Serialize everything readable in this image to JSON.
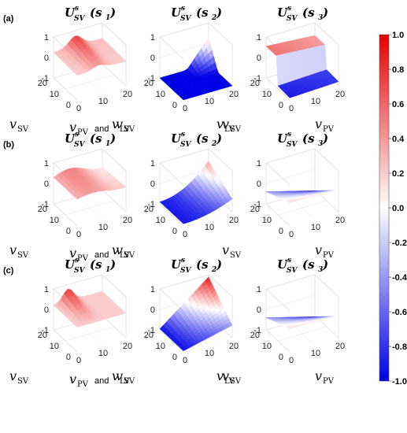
{
  "chart_data": {
    "type": "surface3d",
    "row_labels": [
      "(a)",
      "(b)",
      "(c)"
    ],
    "titles": [
      {
        "base": "U",
        "sup": "s",
        "sub": "SV",
        "arg": "(s",
        "argsub": "1",
        "close": ")"
      },
      {
        "base": "U",
        "sup": "s",
        "sub": "SV",
        "arg": "(s",
        "argsub": "2",
        "close": ")"
      },
      {
        "base": "U",
        "sup": "s",
        "sub": "SV",
        "arg": "(s",
        "argsub": "3",
        "close": ")"
      }
    ],
    "z_ticks": [
      "1",
      "0",
      "-1"
    ],
    "sv_ticks": [
      "20",
      "10",
      "0"
    ],
    "x_ticks": [
      "0",
      "10",
      "20"
    ],
    "axis_labels": {
      "sv": {
        "main": "v",
        "sub": "SV"
      },
      "pv": {
        "main": "v",
        "sub": "PV"
      },
      "lv": {
        "main": "v",
        "sub": "LV"
      },
      "and": "and"
    },
    "colorbar": {
      "ticks": [
        "1.0",
        "0.8",
        "0.6",
        "0.4",
        "0.2",
        "0.0",
        "-0.2",
        "-0.4",
        "-0.6",
        "-0.8",
        "-1.0"
      ],
      "min": -1.0,
      "max": 1.0,
      "colors": {
        "low": "#0000e6",
        "mid": "#ffffff",
        "high": "#e60000"
      }
    },
    "panels": [
      {
        "row": 0,
        "col": 0,
        "kind": "ridge",
        "level": 0.55,
        "range": [
          0.15,
          0.7
        ]
      },
      {
        "row": 0,
        "col": 1,
        "kind": "flat_rise",
        "level": -1.0,
        "range": [
          -1.0,
          0.3
        ]
      },
      {
        "row": 0,
        "col": 2,
        "kind": "step",
        "level": 0.5,
        "range": [
          -0.95,
          0.6
        ]
      },
      {
        "row": 1,
        "col": 0,
        "kind": "wave",
        "level": 0.45,
        "range": [
          0.15,
          0.55
        ]
      },
      {
        "row": 1,
        "col": 1,
        "kind": "slope",
        "level": -0.6,
        "range": [
          -0.9,
          0.4
        ]
      },
      {
        "row": 1,
        "col": 2,
        "kind": "slope_down",
        "level": -0.5,
        "range": [
          -0.95,
          0.2
        ]
      },
      {
        "row": 2,
        "col": 0,
        "kind": "ridge_low",
        "level": 0.4,
        "range": [
          0.1,
          0.8
        ]
      },
      {
        "row": 2,
        "col": 1,
        "kind": "rise",
        "level": 0.0,
        "range": [
          -0.95,
          0.9
        ]
      },
      {
        "row": 2,
        "col": 2,
        "kind": "slope_down",
        "level": -0.4,
        "range": [
          -0.95,
          0.15
        ]
      }
    ]
  }
}
